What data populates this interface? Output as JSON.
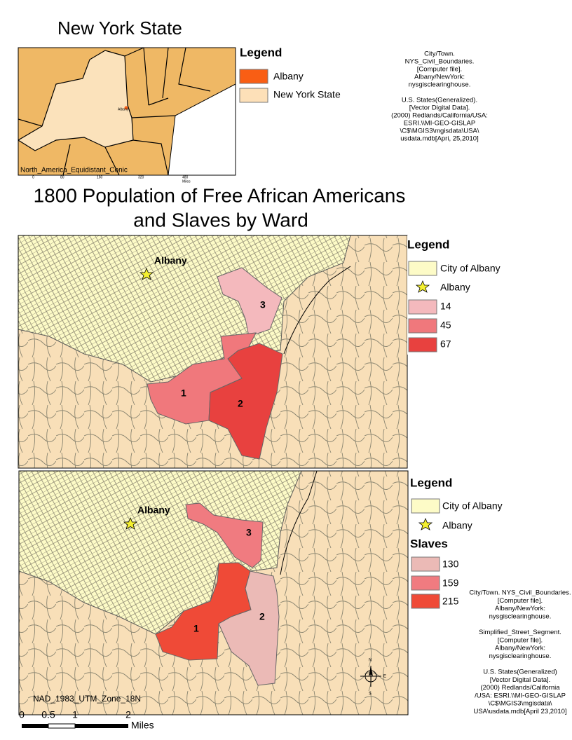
{
  "inset": {
    "title": "New York State",
    "albany_label": "Albany",
    "projection": "North_America_Equidistant_Conic",
    "scale_labels": [
      "0",
      "80",
      "160",
      "320",
      "480",
      "Miles"
    ],
    "legend": {
      "title": "Legend",
      "items": [
        "Albany",
        "New York State"
      ]
    }
  },
  "citation_top": [
    [
      "City/Town.",
      "NYS_Civil_Boundaries.",
      "[Computer file].",
      "Albany/NewYork:",
      "nysgisclearinghouse."
    ],
    [
      "U.S. States(Generalized).",
      "[Vector Digital Data].",
      "(2000) Redlands/California/USA:",
      "ESRI.\\\\MI-GEO-GISLAP",
      "\\C$\\MGIS3\\mgisdata\\USA\\",
      "usdata.mdb[Apri, 25,2010]"
    ]
  ],
  "main_title": [
    "1800 Population of Free African Americans",
    "and Slaves by Ward"
  ],
  "map1": {
    "city_label": "Albany",
    "wards": [
      "1",
      "2",
      "3"
    ],
    "legend": {
      "title": "Legend",
      "city": "City of Albany",
      "point": "Albany",
      "classes": [
        14,
        45,
        67
      ]
    }
  },
  "map2": {
    "city_label": "Albany",
    "wards": [
      "1",
      "2",
      "3"
    ],
    "legend": {
      "title": "Legend",
      "city": "City of Albany",
      "point": "Albany",
      "subtitle": "Slaves",
      "classes": [
        130,
        159,
        215
      ]
    },
    "datum": "NAD_1983_UTM_Zone_18N",
    "north_arrow": [
      "N",
      "E",
      "S"
    ],
    "scale_labels": [
      "0",
      "0.5",
      "1",
      "2",
      "Miles"
    ]
  },
  "citation_bottom": [
    [
      "City/Town. NYS_Civil_Boundaries.",
      "[Computer file].",
      "Albany/NewYork:",
      "nysgisclearinghouse."
    ],
    [
      "Simplified_Street_Segment.",
      "[Computer file].",
      "Albany/NewYork:",
      "nysgisclearinghouse."
    ],
    [
      "U.S. States(Generalized)",
      "[Vector Digital Data].",
      "(2000) Redlands/California",
      "/USA: ESRI.\\\\MI-GEO-GISLAP",
      "\\C$\\MGIS3\\mgisdata\\",
      "USA\\usdata.mdb[April 23,2010]"
    ]
  ]
}
